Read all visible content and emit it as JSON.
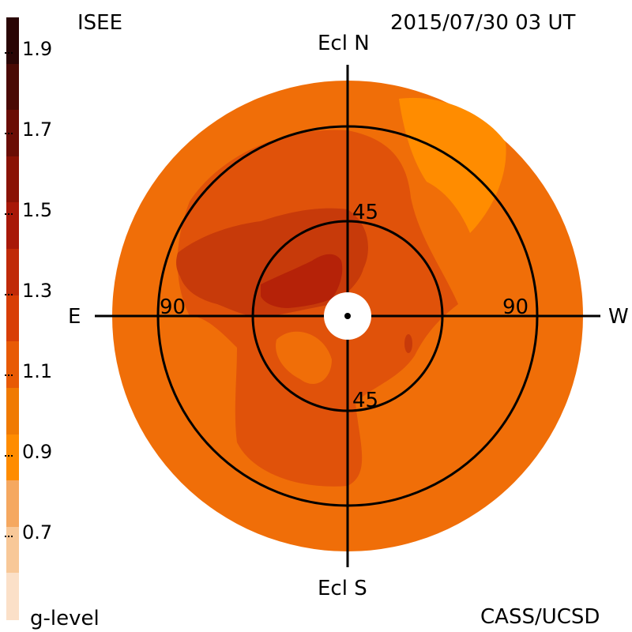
{
  "header": {
    "instrument": "ISEE",
    "datetime": "2015/07/30 03 UT",
    "credit": "CASS/UCSD"
  },
  "colorbar": {
    "label": "g-level",
    "ticks": [
      "1.9",
      "1.7",
      "1.5",
      "1.3",
      "1.1",
      "0.9",
      "0.7"
    ],
    "colors": [
      "#2a0505",
      "#4a0a05",
      "#6a0d05",
      "#8a1205",
      "#a81808",
      "#c02a08",
      "#d83e06",
      "#e85a04",
      "#f07a02",
      "#ff8c00",
      "#f5a860",
      "#f8c898",
      "#fbe0c8"
    ]
  },
  "sky_map": {
    "compass": {
      "north": "Ecl N",
      "south": "Ecl S",
      "east": "E",
      "west": "W"
    },
    "elongation_labels": {
      "inner_north": "45",
      "inner_south": "45",
      "outer_east": "90",
      "outer_west": "90"
    },
    "palette": {
      "background": "#f06e08",
      "medium": "#e0520a",
      "dark": "#c73a0a",
      "darker": "#b52208",
      "light": "#ff8c00",
      "lighter": "#ffa020"
    }
  }
}
